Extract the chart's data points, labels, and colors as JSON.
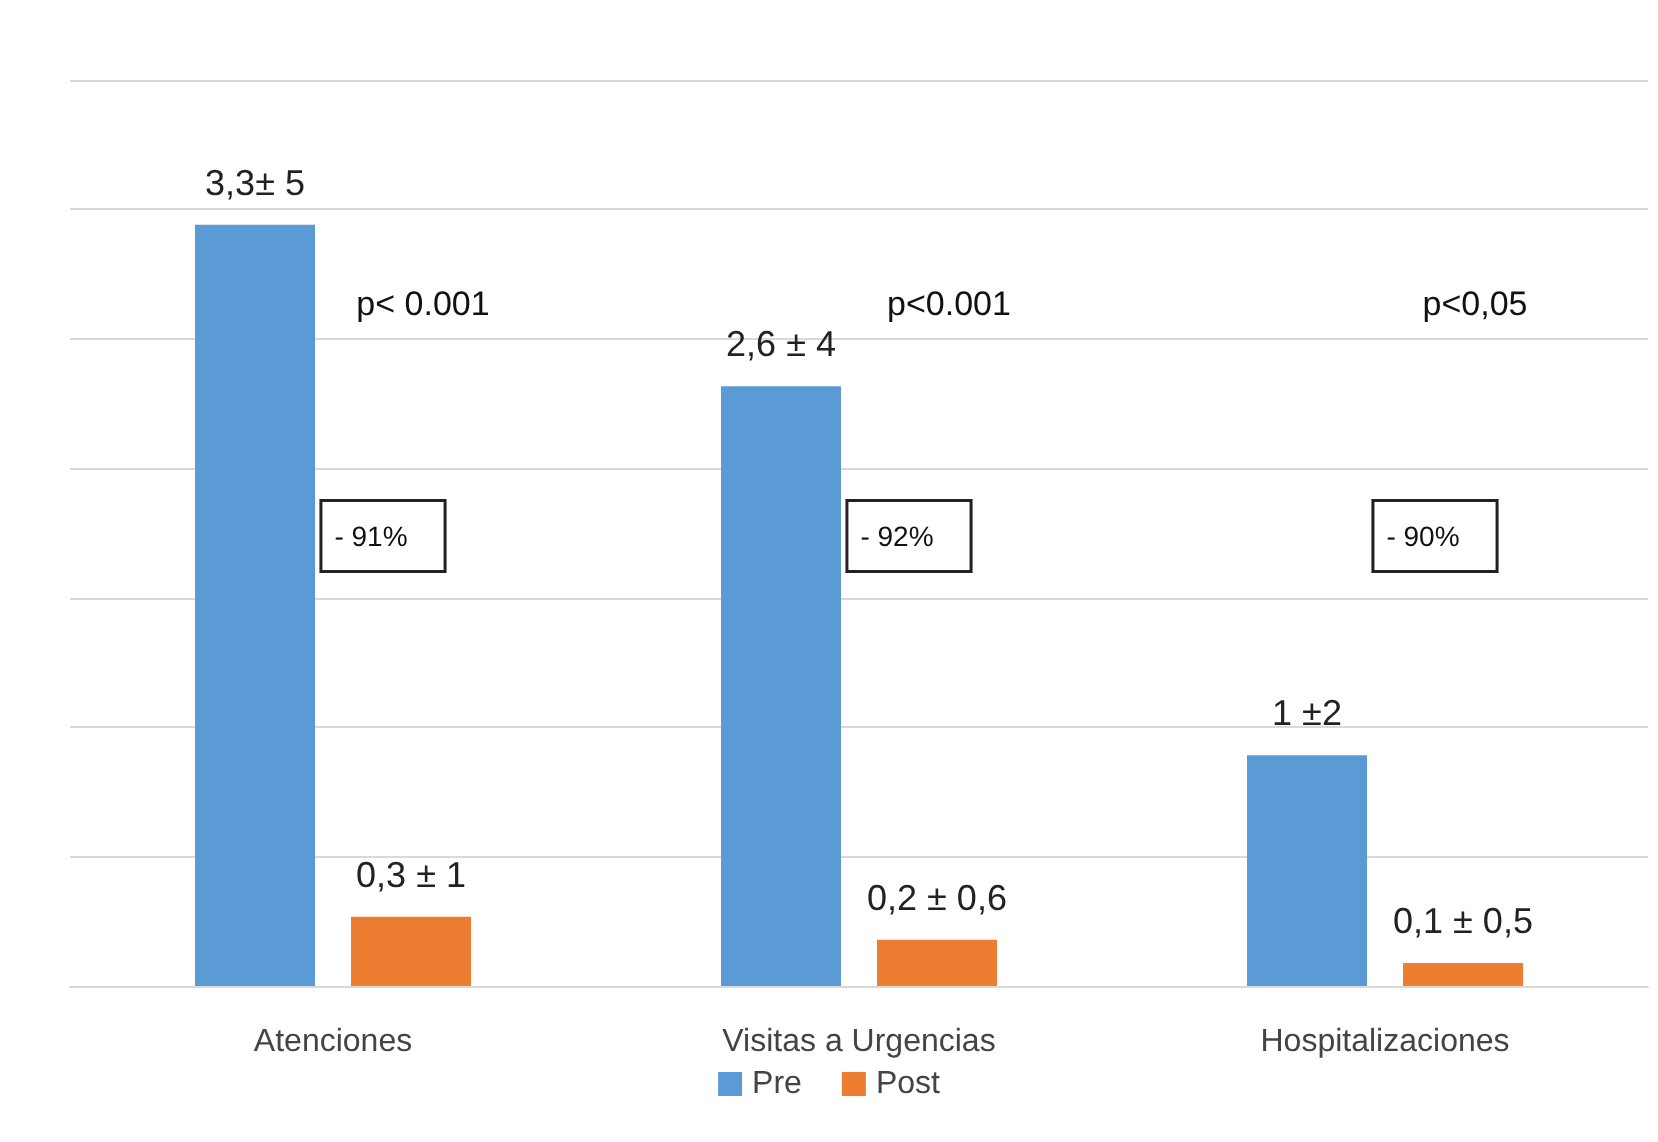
{
  "chart_data": {
    "type": "bar",
    "categories": [
      "Atenciones",
      "Visitas a Urgencias",
      "Hospitalizaciones"
    ],
    "series": [
      {
        "name": "Pre",
        "color": "#5b9bd5",
        "values": [
          3.3,
          2.6,
          1
        ],
        "value_labels": [
          "3,3± 5",
          "2,6 ± 4",
          "1 ±2"
        ]
      },
      {
        "name": "Post",
        "color": "#ed7d31",
        "values": [
          0.3,
          0.2,
          0.1
        ],
        "value_labels": [
          "0,3 ± 1",
          "0,2 ± 0,6",
          "0,1 ± 0,5"
        ]
      }
    ],
    "annotations": [
      "p< 0.001",
      "p<0.001",
      "p<0,05",
      "- 91%",
      "- 92%",
      "- 90%"
    ],
    "grid": "y",
    "legend": "bottom",
    "tick_labels": "x"
  }
}
